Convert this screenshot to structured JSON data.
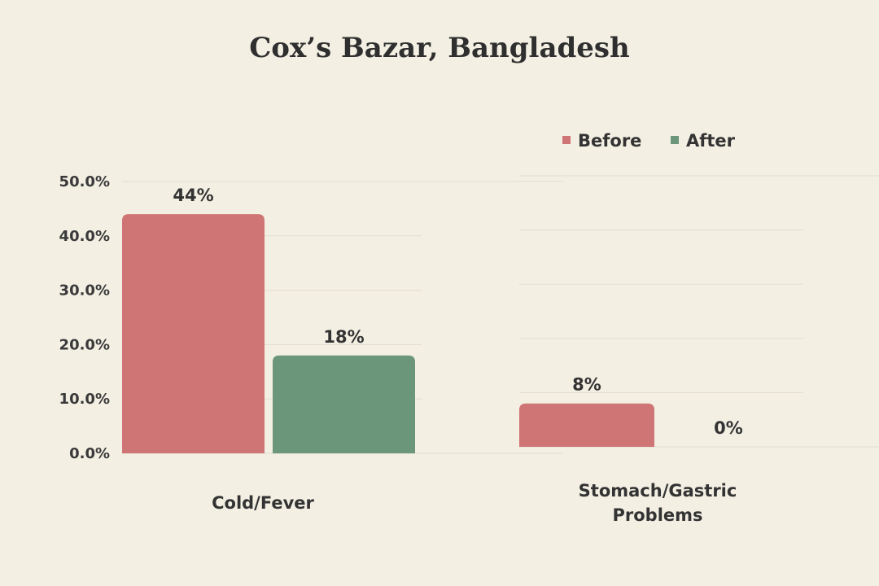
{
  "chart_data": {
    "type": "bar",
    "title": "Cox’s Bazar, Bangladesh",
    "categories": [
      "Cold/Fever",
      "Stomach/Gastric Problems"
    ],
    "series": [
      {
        "name": "Before",
        "color": "#cf7575",
        "values": [
          44,
          8
        ]
      },
      {
        "name": "After",
        "color": "#6c9679",
        "values": [
          18,
          0
        ]
      }
    ],
    "data_labels": [
      [
        "44%",
        "18%"
      ],
      [
        "8%",
        "0%"
      ]
    ],
    "ylim": [
      0,
      50
    ],
    "yticks": [
      "0.0%",
      "10.0%",
      "20.0%",
      "30.0%",
      "40.0%",
      "50.0%"
    ],
    "xlabel": "",
    "ylabel": "",
    "grid": true,
    "legend": "top-right"
  }
}
